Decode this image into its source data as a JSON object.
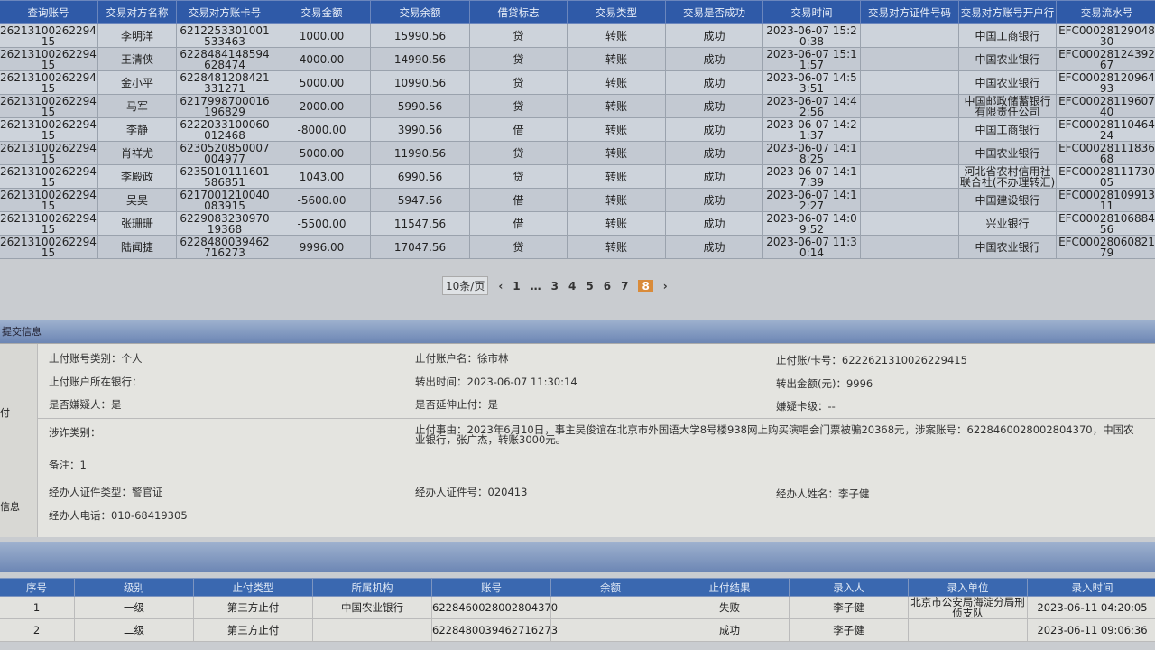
{
  "transactions": {
    "headers": [
      "查询账号",
      "交易对方名称",
      "交易对方账卡号",
      "交易金额",
      "交易余额",
      "借贷标志",
      "交易类型",
      "交易是否成功",
      "交易时间",
      "交易对方证件号码",
      "交易对方账号开户行",
      "交易流水号"
    ],
    "rows": [
      [
        "2621310026229415",
        "李明洋",
        "6212253301001533463",
        "1000.00",
        "15990.56",
        "贷",
        "转账",
        "成功",
        "2023-06-07 15:20:38",
        "",
        "中国工商银行",
        "EFC0002812904830"
      ],
      [
        "2621310026229415",
        "王清侠",
        "6228484148594628474",
        "4000.00",
        "14990.56",
        "贷",
        "转账",
        "成功",
        "2023-06-07 15:11:57",
        "",
        "中国农业银行",
        "EFC0002812439267"
      ],
      [
        "2621310026229415",
        "金小平",
        "6228481208421331271",
        "5000.00",
        "10990.56",
        "贷",
        "转账",
        "成功",
        "2023-06-07 14:53:51",
        "",
        "中国农业银行",
        "EFC0002812096493"
      ],
      [
        "2621310026229415",
        "马军",
        "6217998700016196829",
        "2000.00",
        "5990.56",
        "贷",
        "转账",
        "成功",
        "2023-06-07 14:42:56",
        "",
        "中国邮政储蓄银行有限责任公司",
        "EFC0002811960740"
      ],
      [
        "2621310026229415",
        "李静",
        "6222033100060012468",
        "-8000.00",
        "3990.56",
        "借",
        "转账",
        "成功",
        "2023-06-07 14:21:37",
        "",
        "中国工商银行",
        "EFC0002811046424"
      ],
      [
        "2621310026229415",
        "肖祥尤",
        "6230520850007004977",
        "5000.00",
        "11990.56",
        "贷",
        "转账",
        "成功",
        "2023-06-07 14:18:25",
        "",
        "中国农业银行",
        "EFC0002811183668"
      ],
      [
        "2621310026229415",
        "李殿政",
        "6235010111601586851",
        "1043.00",
        "6990.56",
        "贷",
        "转账",
        "成功",
        "2023-06-07 14:17:39",
        "",
        "河北省农村信用社联合社(不办理转汇)",
        "EFC0002811173005"
      ],
      [
        "2621310026229415",
        "吴昊",
        "6217001210040083915",
        "-5600.00",
        "5947.56",
        "借",
        "转账",
        "成功",
        "2023-06-07 14:12:27",
        "",
        "中国建设银行",
        "EFC0002810991311"
      ],
      [
        "2621310026229415",
        "张珊珊",
        "622908323097019368",
        "-5500.00",
        "11547.56",
        "借",
        "转账",
        "成功",
        "2023-06-07 14:09:52",
        "",
        "兴业银行",
        "EFC0002810688456"
      ],
      [
        "2621310026229415",
        "陆闻捷",
        "6228480039462716273",
        "9996.00",
        "17047.56",
        "贷",
        "转账",
        "成功",
        "2023-06-07 11:30:14",
        "",
        "中国农业银行",
        "EFC0002806082179"
      ]
    ]
  },
  "pagination": {
    "page_size": "10条/页",
    "pages": [
      "1",
      "…",
      "3",
      "4",
      "5",
      "6",
      "7",
      "8"
    ],
    "current": "8",
    "prev": "‹",
    "next": "›"
  },
  "detail": {
    "section_title": "提交信息",
    "side_labels": [
      "付",
      "信息"
    ],
    "fields": {
      "acct_type": "止付账号类别：个人",
      "acct_name": "止付账户名：徐市林",
      "card_no": "止付账/卡号：6222621310026229415",
      "bank": "止付账户所在银行：",
      "out_time": "转出时间：2023-06-07 11:30:14",
      "out_amount": "转出金额(元)：9996",
      "suspect": "是否嫌疑人：是",
      "extend": "是否延伸止付：是",
      "card_level": "嫌疑卡级：--",
      "fraud_type": "涉诈类别：",
      "reason": "止付事由：2023年6月10日，事主吴俊谊在北京市外国语大学8号楼938网上购买演唱会门票被骗20368元，涉案账号：6228460028002804370，中国农业银行，张广杰，转账3000元。",
      "remark": "备注：1",
      "id_type": "经办人证件类型：警官证",
      "id_no": "经办人证件号：020413",
      "handler": "经办人姓名：李子健",
      "phone": "经办人电话：010-68419305"
    }
  },
  "stop_table": {
    "headers": [
      "序号",
      "级别",
      "止付类型",
      "所属机构",
      "账号",
      "余额",
      "止付结果",
      "录入人",
      "录入单位",
      "录入时间"
    ],
    "rows": [
      [
        "1",
        "一级",
        "第三方止付",
        "中国农业银行",
        "6228460028002804370",
        "",
        "失败",
        "李子健",
        "北京市公安局海淀分局刑侦支队",
        "2023-06-11 04:20:05"
      ],
      [
        "2",
        "二级",
        "第三方止付",
        "",
        "6228480039462716273",
        "",
        "成功",
        "李子健",
        "",
        "2023-06-11 09:06:36"
      ]
    ]
  }
}
